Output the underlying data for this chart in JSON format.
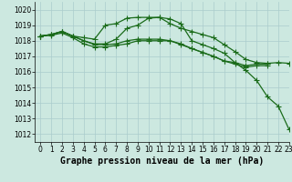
{
  "title": "Graphe pression niveau de la mer (hPa)",
  "background_color": "#cce8e0",
  "grid_color": "#aacccc",
  "line_color": "#1a6b1a",
  "xlim": [
    -0.5,
    23
  ],
  "ylim": [
    1011.5,
    1020.5
  ],
  "yticks": [
    1012,
    1013,
    1014,
    1015,
    1016,
    1017,
    1018,
    1019,
    1020
  ],
  "xticks": [
    0,
    1,
    2,
    3,
    4,
    5,
    6,
    7,
    8,
    9,
    10,
    11,
    12,
    13,
    14,
    15,
    16,
    17,
    18,
    19,
    20,
    21,
    22,
    23
  ],
  "series": [
    {
      "x": [
        0,
        1,
        2,
        3,
        4,
        5,
        6,
        7,
        8,
        9,
        10,
        11,
        12,
        13,
        14,
        15,
        16,
        17,
        18,
        19,
        20,
        21,
        22,
        23
      ],
      "y": [
        1018.3,
        1018.4,
        1018.6,
        1018.3,
        1018.2,
        1018.1,
        1019.0,
        1019.1,
        1019.45,
        1019.5,
        1019.5,
        1019.5,
        1019.1,
        1018.8,
        1018.6,
        1018.4,
        1018.2,
        1017.75,
        1017.3,
        1016.8,
        1016.6,
        1016.55,
        1016.6,
        1016.55
      ]
    },
    {
      "x": [
        0,
        1,
        2,
        3,
        4,
        5,
        6,
        7,
        8,
        9,
        10,
        11,
        12,
        13,
        14,
        15,
        16,
        17,
        18,
        19,
        20,
        21,
        22,
        23
      ],
      "y": [
        1018.3,
        1018.4,
        1018.6,
        1018.3,
        1018.0,
        1017.8,
        1017.8,
        1018.1,
        1018.8,
        1019.0,
        1019.45,
        1019.5,
        1019.4,
        1019.1,
        1018.0,
        1017.75,
        1017.5,
        1017.2,
        1016.6,
        1016.1,
        1015.45,
        1014.4,
        1013.8,
        1012.3
      ]
    },
    {
      "x": [
        0,
        1,
        2,
        3,
        4,
        5,
        6,
        7,
        8,
        9,
        10,
        11,
        12,
        13,
        14,
        15,
        16,
        17,
        18,
        19,
        20,
        21
      ],
      "y": [
        1018.3,
        1018.4,
        1018.6,
        1018.3,
        1018.0,
        1017.75,
        1017.75,
        1017.8,
        1018.0,
        1018.1,
        1018.1,
        1018.1,
        1018.0,
        1017.75,
        1017.5,
        1017.25,
        1017.0,
        1016.7,
        1016.6,
        1016.4,
        1016.5,
        1016.5
      ]
    },
    {
      "x": [
        0,
        1,
        2,
        3,
        4,
        5,
        6,
        7,
        8,
        9,
        10,
        11,
        12,
        13,
        14,
        15,
        16,
        17,
        18,
        19,
        20,
        21
      ],
      "y": [
        1018.3,
        1018.35,
        1018.5,
        1018.2,
        1017.8,
        1017.6,
        1017.6,
        1017.7,
        1017.8,
        1018.0,
        1018.0,
        1018.0,
        1018.0,
        1017.8,
        1017.5,
        1017.25,
        1017.0,
        1016.7,
        1016.5,
        1016.3,
        1016.4,
        1016.4
      ]
    }
  ],
  "marker": "+",
  "markersize": 4,
  "linewidth": 0.9,
  "title_fontsize": 7,
  "tick_fontsize": 5.5
}
